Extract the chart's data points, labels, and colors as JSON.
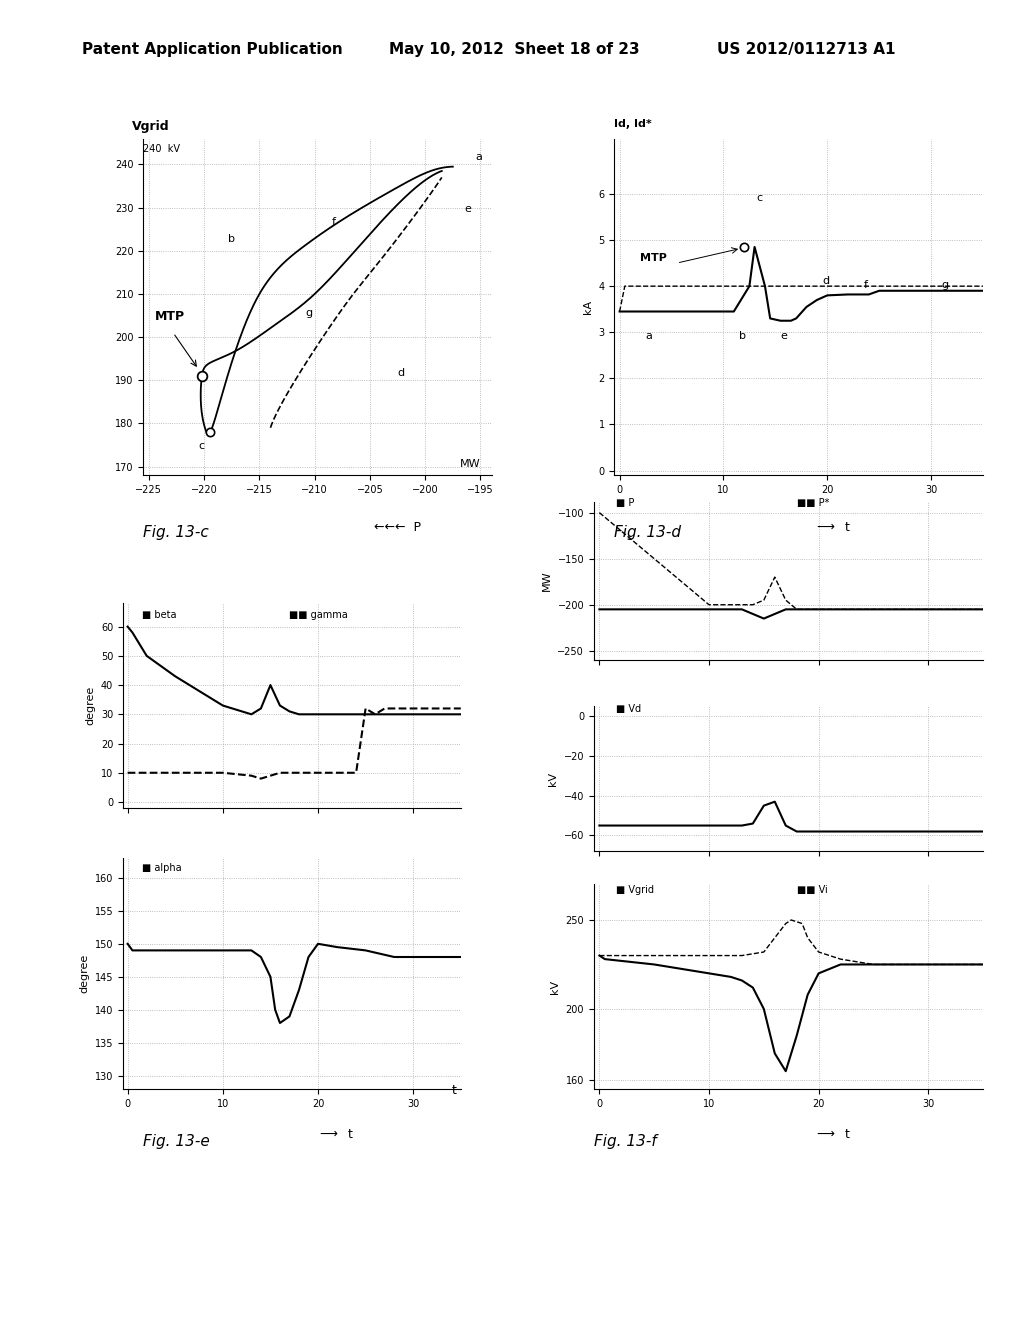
{
  "header_left": "Patent Application Publication",
  "header_mid": "May 10, 2012  Sheet 18 of 23",
  "header_right": "US 2012/0112713 A1",
  "line_color": "#000000",
  "grid_color": "#aaaaaa",
  "bg_color": "#ffffff"
}
